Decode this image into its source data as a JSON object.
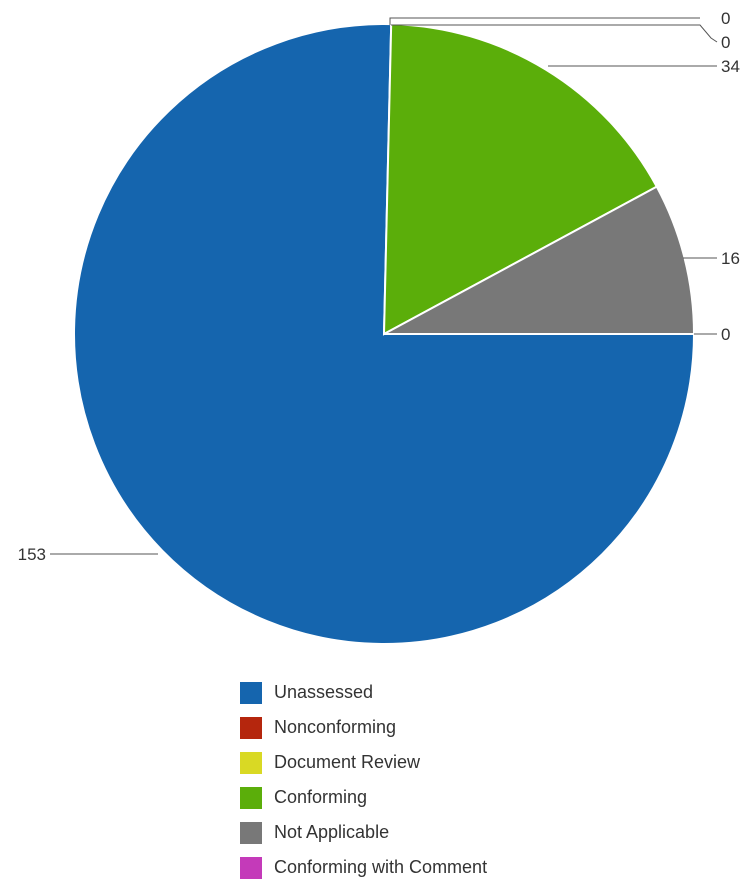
{
  "chart_data": {
    "type": "pie",
    "title": "",
    "series": [
      {
        "name": "Unassessed",
        "value": 153,
        "label": "153",
        "color": "#1565ae"
      },
      {
        "name": "Nonconforming",
        "value": 0,
        "label": "0",
        "color": "#b5260d"
      },
      {
        "name": "Document Review",
        "value": 0,
        "label": "0",
        "color": "#d9d924"
      },
      {
        "name": "Conforming",
        "value": 34,
        "label": "34",
        "color": "#5bae0a"
      },
      {
        "name": "Not Applicable",
        "value": 16,
        "label": "16",
        "color": "#787878"
      },
      {
        "name": "Conforming with Comment",
        "value": 0,
        "label": "0",
        "color": "#c43ab9"
      }
    ],
    "legend_position": "bottom"
  }
}
